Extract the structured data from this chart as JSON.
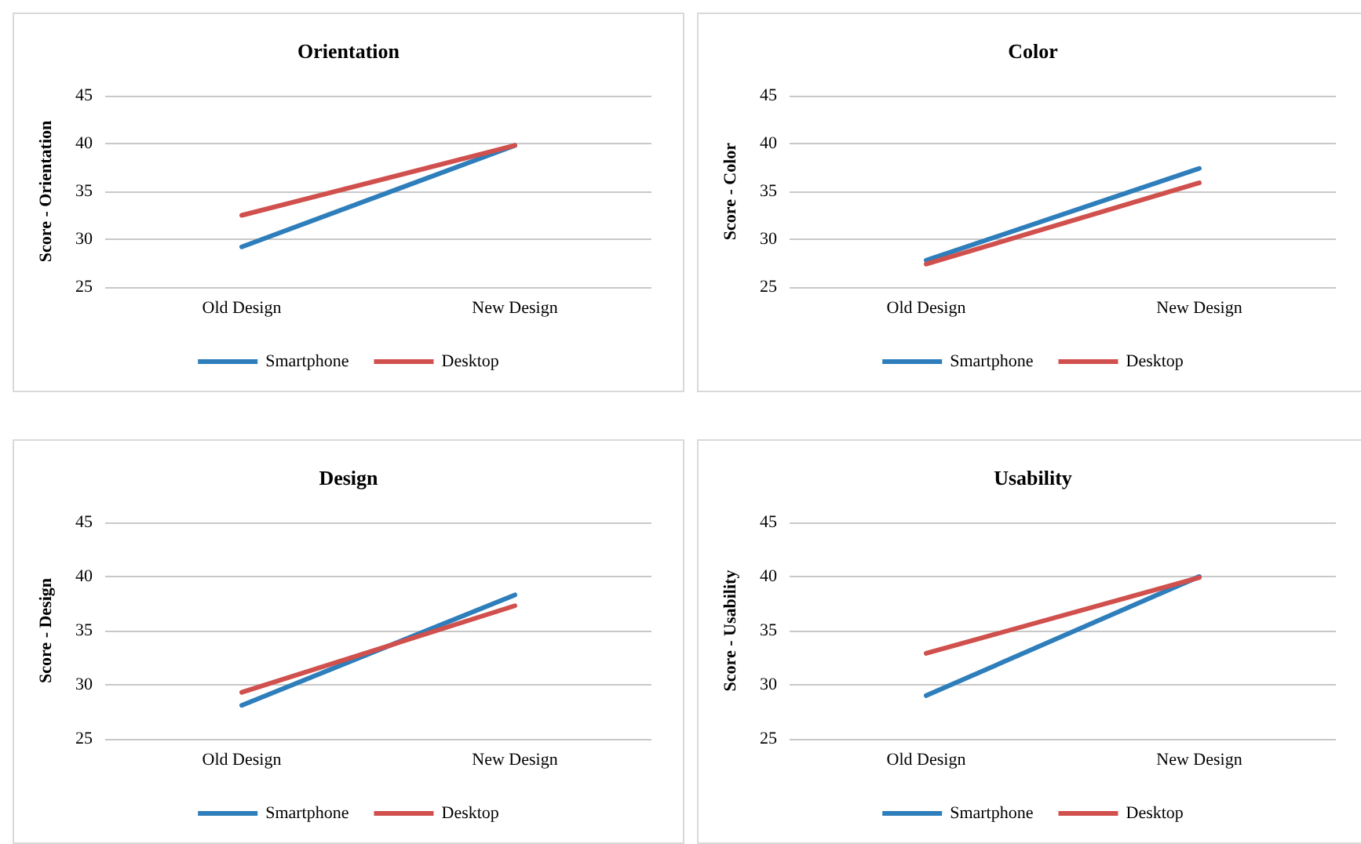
{
  "chart_data": [
    {
      "type": "line",
      "title": "Orientation",
      "ylabel": "Score - Orientation",
      "categories": [
        "Old Design",
        "New Design"
      ],
      "series": [
        {
          "name": "Smartphone",
          "color": "#2e7ebb",
          "values": [
            29.2,
            39.8
          ]
        },
        {
          "name": "Desktop",
          "color": "#d0504d",
          "values": [
            32.5,
            39.8
          ]
        }
      ],
      "ylim": [
        25,
        45
      ],
      "yticks": [
        25,
        30,
        35,
        40,
        45
      ],
      "grid": "y",
      "legend": "bottom",
      "marker": "none"
    },
    {
      "type": "line",
      "title": "Color",
      "ylabel": "Score - Color",
      "categories": [
        "Old Design",
        "New Design"
      ],
      "series": [
        {
          "name": "Smartphone",
          "color": "#2e7ebb",
          "values": [
            27.8,
            37.4
          ]
        },
        {
          "name": "Desktop",
          "color": "#d0504d",
          "values": [
            27.4,
            35.9
          ]
        }
      ],
      "ylim": [
        25,
        45
      ],
      "yticks": [
        25,
        30,
        35,
        40,
        45
      ],
      "grid": "y",
      "legend": "bottom",
      "marker": "none"
    },
    {
      "type": "line",
      "title": "Design",
      "ylabel": "Score - Design",
      "categories": [
        "Old Design",
        "New Design"
      ],
      "series": [
        {
          "name": "Smartphone",
          "color": "#2e7ebb",
          "values": [
            28.1,
            38.3
          ]
        },
        {
          "name": "Desktop",
          "color": "#d0504d",
          "values": [
            29.3,
            37.3
          ]
        }
      ],
      "ylim": [
        25,
        45
      ],
      "yticks": [
        25,
        30,
        35,
        40,
        45
      ],
      "grid": "y",
      "legend": "bottom",
      "marker": "none"
    },
    {
      "type": "line",
      "title": "Usability",
      "ylabel": "Score - Usability",
      "categories": [
        "Old Design",
        "New Design"
      ],
      "series": [
        {
          "name": "Smartphone",
          "color": "#2e7ebb",
          "values": [
            29.0,
            40.0
          ]
        },
        {
          "name": "Desktop",
          "color": "#d0504d",
          "values": [
            32.9,
            39.9
          ]
        }
      ],
      "ylim": [
        25,
        45
      ],
      "yticks": [
        25,
        30,
        35,
        40,
        45
      ],
      "grid": "y",
      "legend": "bottom",
      "marker": "none"
    }
  ]
}
